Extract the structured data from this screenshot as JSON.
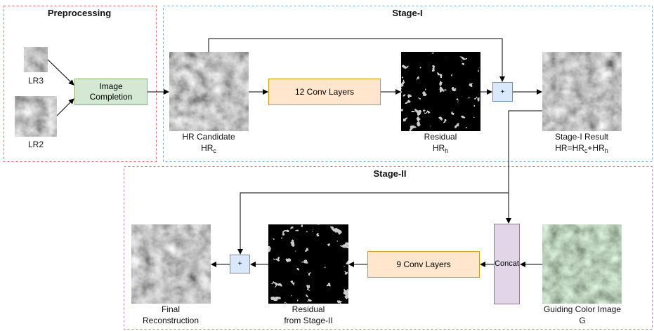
{
  "sections": {
    "preprocessing": "Preprocessing",
    "stage1": "Stage-I",
    "stage2": "Stage-II"
  },
  "images": {
    "lr3": "LR3",
    "lr2": "LR2"
  },
  "blocks": {
    "image_completion": "Image Completion",
    "conv12": "12 Conv Layers",
    "add1": "+",
    "conv9": "9 Conv Layers",
    "concat": "Concat",
    "add2": "+"
  },
  "captions": {
    "hr_candidate": [
      [
        {
          "text": "HR Candidate"
        }
      ],
      [
        {
          "text": "HR"
        },
        {
          "sub": "c"
        }
      ]
    ],
    "residual": [
      [
        {
          "text": "Residual"
        }
      ],
      [
        {
          "text": "HR"
        },
        {
          "sub": "h"
        }
      ]
    ],
    "stage1_result": [
      [
        {
          "text": "Stage-I Result"
        }
      ],
      [
        {
          "text": "HR=HR"
        },
        {
          "sub": "c"
        },
        {
          "text": "+HR"
        },
        {
          "sub": "h"
        }
      ]
    ],
    "final": [
      [
        {
          "text": "Final"
        }
      ],
      [
        {
          "text": "Reconstruction"
        }
      ]
    ],
    "residual2": [
      [
        {
          "text": "Residual"
        }
      ],
      [
        {
          "text": "from Stage-II"
        }
      ]
    ],
    "guiding": [
      [
        {
          "text": "Guiding Color Image"
        }
      ],
      [
        {
          "text": "G"
        }
      ]
    ]
  }
}
